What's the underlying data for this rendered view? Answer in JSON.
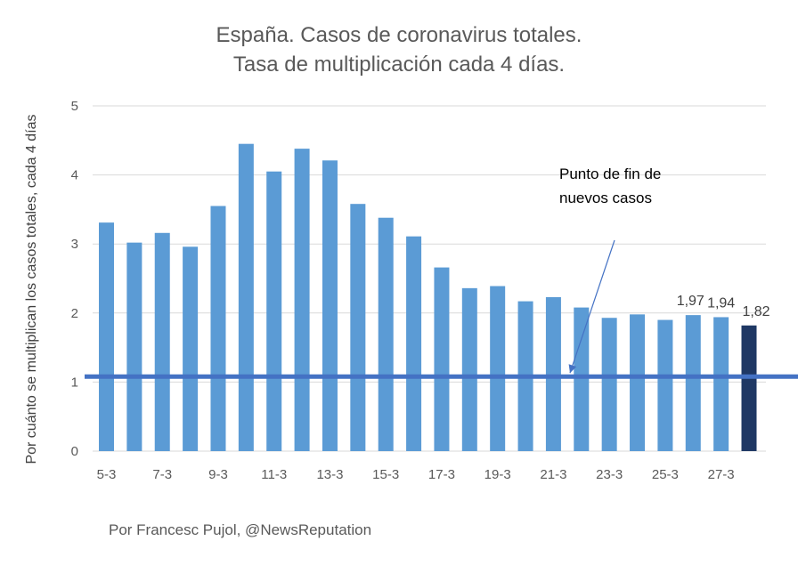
{
  "chart_data": {
    "type": "bar",
    "title_lines": [
      "España. Casos de coronavirus totales.",
      "Tasa de multiplicación cada 4 días."
    ],
    "ylabel": "Por cuánto se multiplican los casos totales, cada 4 días",
    "xlabel": "",
    "ylim": [
      0,
      5
    ],
    "yticks": [
      0,
      1,
      2,
      3,
      4,
      5
    ],
    "grid": true,
    "categories": [
      "5-3",
      "6-3",
      "7-3",
      "8-3",
      "9-3",
      "10-3",
      "11-3",
      "12-3",
      "13-3",
      "14-3",
      "15-3",
      "16-3",
      "17-3",
      "18-3",
      "19-3",
      "20-3",
      "21-3",
      "22-3",
      "23-3",
      "24-3",
      "25-3",
      "26-3",
      "27-3",
      "28-3"
    ],
    "xtick_labels": [
      "5-3",
      "",
      "7-3",
      "",
      "9-3",
      "",
      "11-3",
      "",
      "13-3",
      "",
      "15-3",
      "",
      "17-3",
      "",
      "19-3",
      "",
      "21-3",
      "",
      "23-3",
      "",
      "25-3",
      "",
      "27-3",
      ""
    ],
    "values": [
      3.31,
      3.02,
      3.16,
      2.96,
      3.55,
      4.45,
      4.05,
      4.38,
      4.21,
      3.58,
      3.38,
      3.11,
      2.66,
      2.36,
      2.39,
      2.17,
      2.23,
      2.08,
      1.93,
      1.98,
      1.9,
      1.97,
      1.94,
      1.82
    ],
    "data_labels": {
      "21": "1,97",
      "22": "1,94",
      "23": "1,82"
    },
    "bar_color": "#5b9bd5",
    "highlight_color": "#1f3864",
    "highlight_index": 23,
    "reference_line": {
      "value": 1.08,
      "color": "#4472c4"
    },
    "annotation": {
      "lines": [
        "Punto de fin de",
        "nuevos casos"
      ]
    }
  },
  "credit": "Por Francesc Pujol, @NewsReputation"
}
